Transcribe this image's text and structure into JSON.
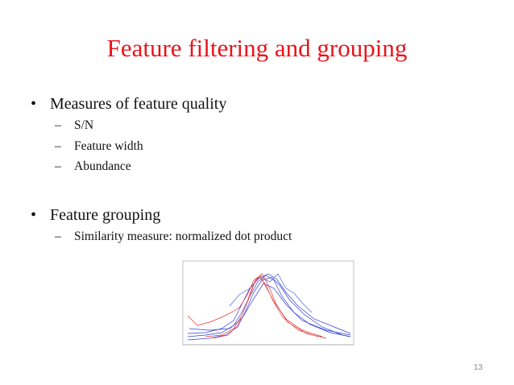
{
  "title": "Feature filtering and grouping",
  "bullets": [
    {
      "text": "Measures of feature quality",
      "subitems": [
        "S/N",
        "Feature width",
        "Abundance"
      ]
    },
    {
      "text": "Feature grouping",
      "subitems": [
        "Similarity measure: normalized dot product"
      ]
    }
  ],
  "page_number": "13"
}
